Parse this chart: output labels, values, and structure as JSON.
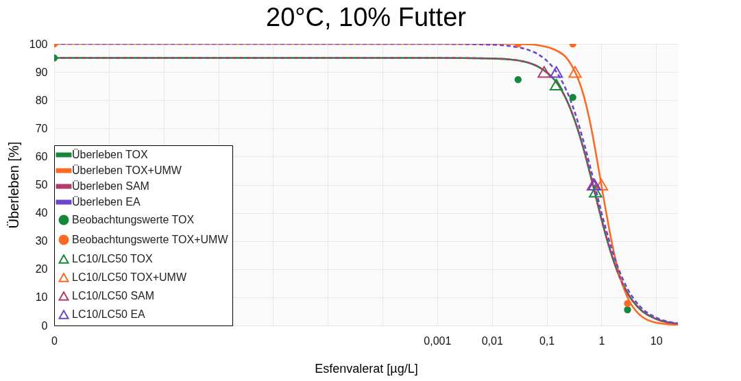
{
  "chart_data": {
    "type": "line",
    "title": "20°C, 10% Futter",
    "xlabel": "Esfenvalerat [µg/L]",
    "ylabel": "Überleben [%]",
    "log": "x",
    "grid": true,
    "legend": "bottom left",
    "xlim": [
      1e-10,
      25
    ],
    "ylim": [
      0,
      100
    ],
    "xticks": [
      {
        "value": 1e-10,
        "label": "0"
      },
      {
        "value": 1e-09,
        "label": null
      },
      {
        "value": 1e-08,
        "label": null
      },
      {
        "value": 1e-07,
        "label": null
      },
      {
        "value": 1e-06,
        "label": null
      },
      {
        "value": 1e-05,
        "label": null
      },
      {
        "value": 0.0001,
        "label": null
      },
      {
        "value": 0.001,
        "label": "0,001"
      },
      {
        "value": 0.01,
        "label": "0,01"
      },
      {
        "value": 0.1,
        "label": "0,1"
      },
      1,
      10
    ],
    "yticks": [
      0,
      10,
      20,
      30,
      40,
      50,
      60,
      70,
      80,
      90,
      100
    ],
    "series": [
      {
        "name": "Überleben TOX",
        "type": "line",
        "line_style": "solid",
        "color": "#15893a",
        "x": [
          1e-10,
          0.001,
          0.01,
          0.02,
          0.05,
          0.07,
          0.2,
          0.25,
          0.5,
          0.6,
          1.2,
          1.5,
          2,
          3,
          5,
          10,
          25
        ],
        "values": [
          95,
          95,
          94.8,
          94.5,
          93.1,
          91.9,
          82.5,
          78.6,
          60.9,
          55,
          32.1,
          25.7,
          18.7,
          11.5,
          5.9,
          2.3,
          0.6
        ]
      },
      {
        "name": "Überleben TOX+UMW",
        "type": "line",
        "line_style": "solid",
        "color": "#fb6a22",
        "x": [
          1e-10,
          0.001,
          0.01,
          0.02,
          0.05,
          0.07,
          0.2,
          0.25,
          0.5,
          0.6,
          1.2,
          1.5,
          2,
          3,
          5,
          10,
          25
        ],
        "values": [
          100,
          100,
          100,
          100,
          99.8,
          99.5,
          96.2,
          94.1,
          80,
          73.5,
          41,
          30.8,
          20,
          10,
          3.8,
          1,
          0.2
        ]
      },
      {
        "name": "Überleben SAM",
        "type": "line",
        "line_style": "dashed",
        "color": "#b23a6c",
        "x": [
          1e-10,
          0.001,
          0.01,
          0.02,
          0.05,
          0.07,
          0.2,
          0.25,
          0.5,
          0.6,
          1.2,
          1.5,
          2,
          3,
          5,
          10,
          25
        ],
        "values": [
          95,
          95,
          94.8,
          94.5,
          93.1,
          91.9,
          82.5,
          78.6,
          60.9,
          55,
          32.1,
          25.7,
          18.7,
          11.5,
          5.9,
          2.3,
          0.6
        ]
      },
      {
        "name": "Überleben EA",
        "type": "line",
        "line_style": "dashed",
        "color": "#6b45cc",
        "x": [
          1e-10,
          0.001,
          0.01,
          0.02,
          0.05,
          0.07,
          0.2,
          0.25,
          0.5,
          0.6,
          1.2,
          1.5,
          2,
          3,
          5,
          10,
          25
        ],
        "values": [
          100,
          100,
          99.7,
          99.3,
          97.6,
          96.3,
          85.9,
          81.8,
          63.5,
          57.6,
          34.4,
          27.9,
          20.7,
          13,
          6.9,
          2.8,
          0.8
        ]
      },
      {
        "name": "Beobachtungswerte TOX",
        "type": "scatter",
        "marker": "circle",
        "color": "#15893a",
        "x": [
          1e-10,
          0.03,
          0.3,
          3
        ],
        "values": [
          95,
          87.3,
          81,
          5.6
        ]
      },
      {
        "name": "Beobachtungswerte TOX+UMW",
        "type": "scatter",
        "marker": "circle",
        "color": "#fb6a22",
        "x": [
          1e-10,
          0.03,
          0.3,
          3
        ],
        "values": [
          100,
          100,
          100,
          7.8
        ]
      },
      {
        "name": "LC10/LC50 TOX",
        "type": "scatter",
        "marker": "triangle",
        "color": "#15893a",
        "x": [
          0.15,
          0.78
        ],
        "values": [
          85.5,
          47.5
        ]
      },
      {
        "name": "LC10/LC50 TOX+UMW",
        "type": "scatter",
        "marker": "triangle",
        "color": "#fb6a22",
        "x": [
          0.33,
          1
        ],
        "values": [
          90,
          50
        ]
      },
      {
        "name": "LC10/LC50 SAM",
        "type": "scatter",
        "marker": "triangle",
        "color": "#b23a6c",
        "x": [
          0.09,
          0.71
        ],
        "values": [
          90,
          50
        ]
      },
      {
        "name": "LC10/LC50 EA",
        "type": "scatter",
        "marker": "triangle",
        "color": "#6b45cc",
        "x": [
          0.15,
          0.75
        ],
        "values": [
          90,
          50
        ]
      }
    ]
  }
}
